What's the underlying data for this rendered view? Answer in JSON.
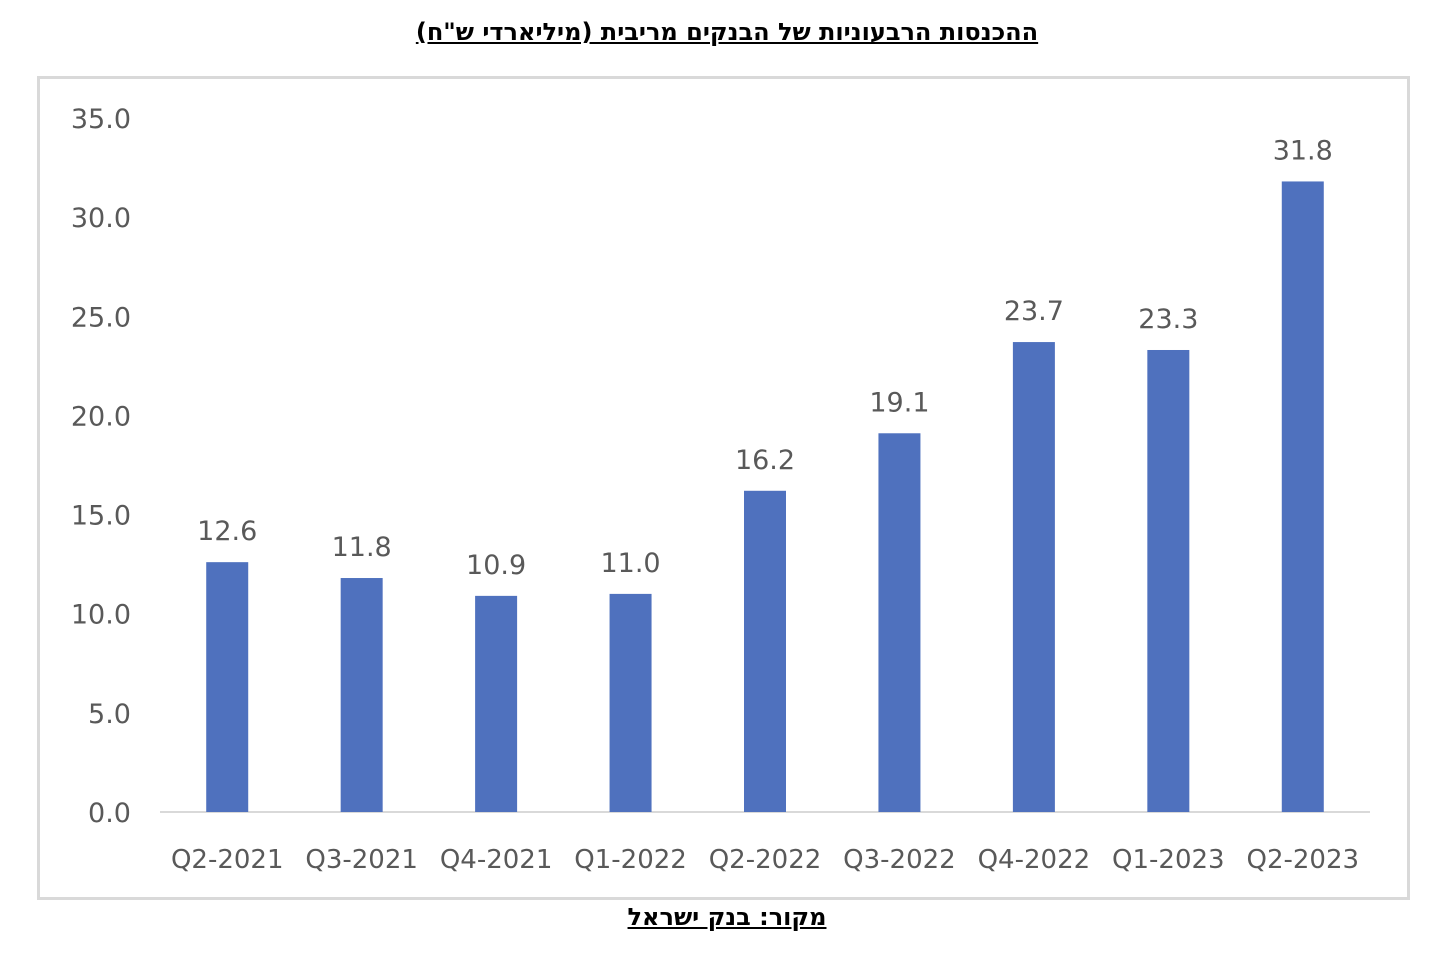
{
  "title": "ההכנסות הרבעוניות של הבנקים מריבית (מיליארדי ש\"ח)",
  "source": "מקור: בנק ישראל",
  "colors": {
    "bar": "#4f71be",
    "axis": "#d9d9d9",
    "text": "#595959"
  },
  "chart_data": {
    "type": "bar",
    "categories": [
      "Q2-2021",
      "Q3-2021",
      "Q4-2021",
      "Q1-2022",
      "Q2-2022",
      "Q3-2022",
      "Q4-2022",
      "Q1-2023",
      "Q2-2023"
    ],
    "values": [
      12.6,
      11.8,
      10.9,
      11.0,
      16.2,
      19.1,
      23.7,
      23.3,
      31.8
    ],
    "data_labels": [
      "12.6",
      "11.8",
      "10.9",
      "11.0",
      "16.2",
      "19.1",
      "23.7",
      "23.3",
      "31.8"
    ],
    "ylim": [
      0,
      35
    ],
    "yticks": [
      "0.0",
      "5.0",
      "10.0",
      "15.0",
      "20.0",
      "25.0",
      "30.0",
      "35.0"
    ],
    "ytick_values": [
      0,
      5,
      10,
      15,
      20,
      25,
      30,
      35
    ],
    "grid": false,
    "legend": "none"
  }
}
